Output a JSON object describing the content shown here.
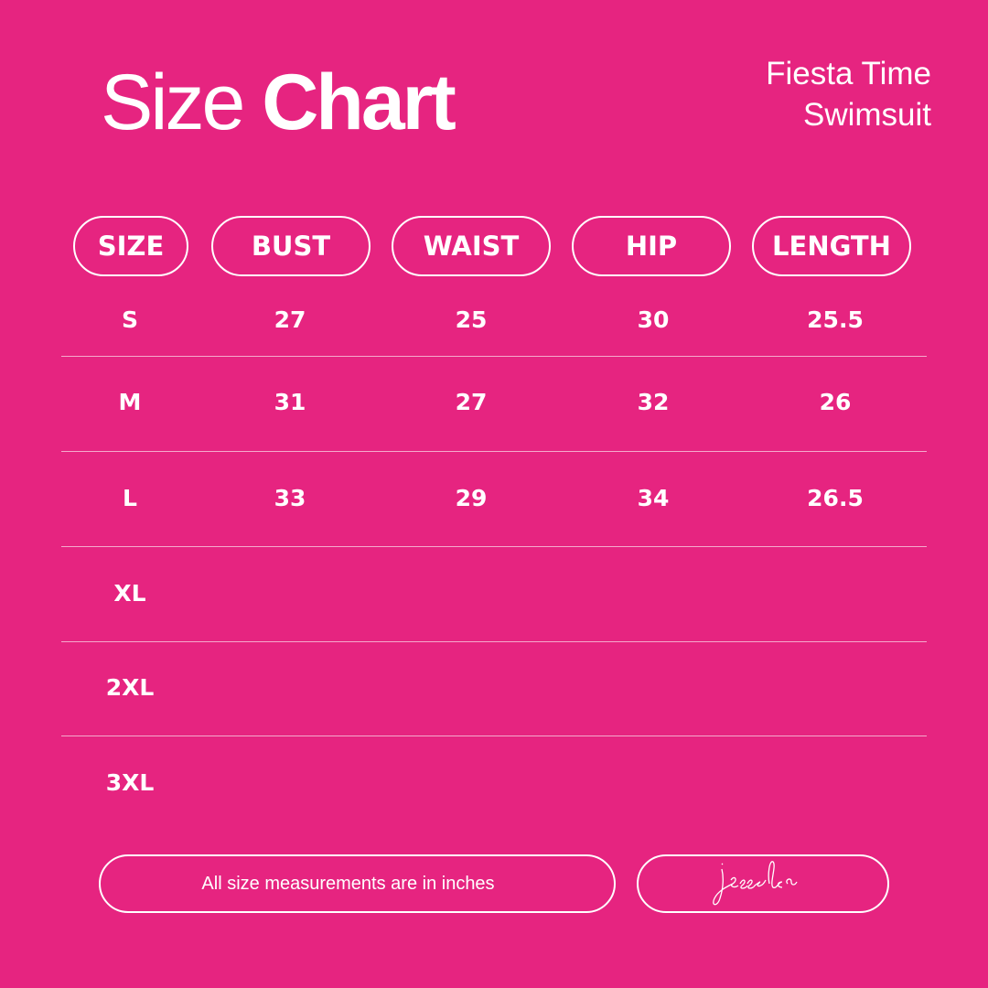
{
  "title": {
    "light": "Size",
    "bold": "Chart"
  },
  "product": {
    "line1": "Fiesta Time",
    "line2": "Swimsuit"
  },
  "table": {
    "headers": [
      "SIZE",
      "BUST",
      "WAIST",
      "HIP",
      "LENGTH"
    ],
    "rows": [
      [
        "S",
        "27",
        "25",
        "30",
        "25.5"
      ],
      [
        "M",
        "31",
        "27",
        "32",
        "26"
      ],
      [
        "L",
        "33",
        "29",
        "34",
        "26.5"
      ],
      [
        "XL",
        "",
        "",
        "",
        ""
      ],
      [
        "2XL",
        "",
        "",
        "",
        ""
      ],
      [
        "3XL",
        "",
        "",
        "",
        ""
      ]
    ]
  },
  "footer": {
    "note": "All size measurements are in inches",
    "logo_text": "jess lea"
  },
  "colors": {
    "background": "#e62480",
    "foreground": "#ffffff"
  }
}
